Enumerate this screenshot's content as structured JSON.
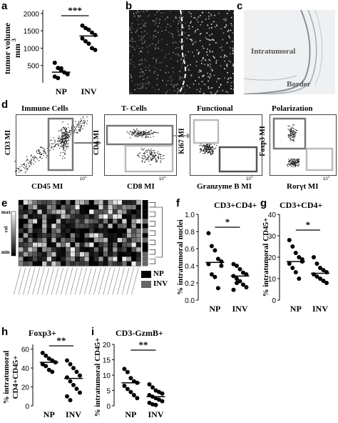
{
  "panels": {
    "a": {
      "label": "a",
      "chart_data": {
        "type": "scatter",
        "ylabel": "tumor volume mm3",
        "ylabel_line1": "tumor volume",
        "ylabel_line2": "mm",
        "ylabel_sup": "3",
        "categories": [
          "NP",
          "INV"
        ],
        "yticks": [
          "2000",
          "1500",
          "1000",
          "500"
        ],
        "ylim": [
          0,
          2100
        ],
        "series": [
          {
            "values": [
              580,
              430,
              360,
              300,
              250,
              180,
              140,
              420
            ]
          },
          {
            "values": [
              1650,
              1580,
              1530,
              1450,
              1380,
              1280,
              1200,
              1130,
              1000,
              950
            ]
          }
        ],
        "means": [
          310,
          1350
        ],
        "significance": "***"
      }
    },
    "b": {
      "label": "b"
    },
    "c": {
      "label": "c",
      "text_intratumoral": "Intratumoral",
      "text_border": "Border"
    },
    "d": {
      "label": "d",
      "titles": [
        "Immune Cells",
        "T- Cells",
        "Functional",
        "Polarization"
      ],
      "xlabels": [
        "CD45 MI",
        "CD8 MI",
        "Granzyme B MI",
        "Rorγt MI"
      ],
      "ylabels": [
        "CD3 MI",
        "CD4 MI",
        "Ki67 MI",
        "Foxp3 MI"
      ],
      "tick_label": "10",
      "tick_exp": "3"
    },
    "e": {
      "label": "e",
      "scale_max": "max",
      "scale_mid": "col",
      "scale_min": "min",
      "legend": [
        "NP",
        "INV"
      ]
    },
    "f": {
      "label": "f",
      "chart_data": {
        "type": "scatter",
        "title": "CD3+CD4+",
        "ylabel": "% intratumoral nuclei",
        "categories": [
          "NP",
          "INV"
        ],
        "yticks": [
          "1.0",
          "0.8",
          "0.6",
          "0.4",
          "0.2",
          "0.0"
        ],
        "ylim": [
          0,
          1.0
        ],
        "series": [
          {
            "values": [
              0.78,
              0.63,
              0.58,
              0.48,
              0.45,
              0.42,
              0.3,
              0.27,
              0.14,
              0.4
            ]
          },
          {
            "values": [
              0.42,
              0.4,
              0.36,
              0.32,
              0.3,
              0.28,
              0.25,
              0.22,
              0.18,
              0.15,
              0.12,
              0.2
            ]
          }
        ],
        "means": [
          0.44,
          0.28
        ],
        "significance": "*"
      }
    },
    "g": {
      "label": "g",
      "chart_data": {
        "type": "scatter",
        "title": "CD3+CD4+",
        "ylabel": "% intratumoral CD45+",
        "categories": [
          "NP",
          "INV"
        ],
        "yticks": [
          "40",
          "30",
          "20",
          "10",
          "0"
        ],
        "ylim": [
          0,
          40
        ],
        "series": [
          {
            "values": [
              28,
              25,
              22,
              20,
              19,
              17,
              15,
              13,
              10,
              18
            ]
          },
          {
            "values": [
              20,
              17,
              15,
              14,
              13,
              12,
              11,
              10,
              9,
              8
            ]
          }
        ],
        "means": [
          18,
          12.5
        ],
        "significance": "*"
      }
    },
    "h": {
      "label": "h",
      "chart_data": {
        "type": "scatter",
        "title": "Foxp3+",
        "ylabel_line1": "% intratumoral",
        "ylabel_line2": "CD4+CD45+",
        "categories": [
          "NP",
          "INV"
        ],
        "yticks": [
          "60",
          "40",
          "20",
          "0"
        ],
        "ylim": [
          0,
          65
        ],
        "series": [
          {
            "values": [
              56,
              53,
              50,
              48,
              46,
              44,
              42,
              38,
              36
            ]
          },
          {
            "values": [
              48,
              44,
              40,
              36,
              32,
              30,
              26,
              22,
              18,
              14,
              10,
              6
            ]
          }
        ],
        "means": [
          46,
          29
        ],
        "significance": "**"
      }
    },
    "i": {
      "label": "i",
      "chart_data": {
        "type": "scatter",
        "title": "CD3-GzmB+",
        "ylabel": "% intratumoral CD45+",
        "categories": [
          "NP",
          "INV"
        ],
        "yticks": [
          "20",
          "15",
          "10",
          "5",
          "0"
        ],
        "ylim": [
          0,
          20
        ],
        "series": [
          {
            "values": [
              12,
              11,
              9,
              8,
              7.5,
              6.5,
              5.5,
              4.5,
              3.5,
              2.5
            ]
          },
          {
            "values": [
              7,
              6,
              5,
              4.5,
              4,
              3.5,
              3,
              2.5,
              2,
              1.5,
              1,
              0.5,
              0.3
            ]
          }
        ],
        "means": [
          7.5,
          3
        ],
        "significance": "**"
      }
    }
  }
}
